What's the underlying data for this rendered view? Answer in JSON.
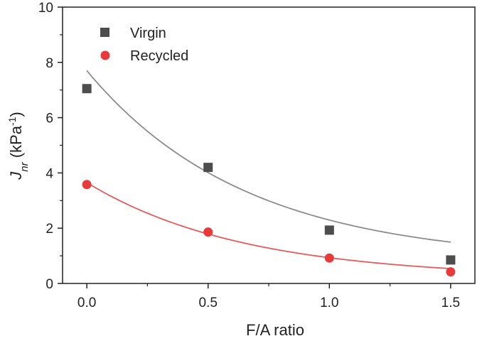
{
  "chart_data": {
    "type": "scatter",
    "title": "",
    "xlabel": "F/A ratio",
    "ylabel": {
      "main": "J",
      "subscript": "nr",
      "unit_prefix": " (kPa",
      "superscript": "-1",
      "unit_suffix": ")"
    },
    "xlim": [
      -0.1,
      1.6
    ],
    "ylim": [
      0,
      10
    ],
    "xticks": [
      0.0,
      0.5,
      1.0,
      1.5
    ],
    "xtick_labels": [
      "0.0",
      "0.5",
      "1.0",
      "1.5"
    ],
    "yticks": [
      0,
      2,
      4,
      6,
      8,
      10
    ],
    "ytick_labels": [
      "0",
      "2",
      "4",
      "6",
      "8",
      "10"
    ],
    "grid": false,
    "legend_position": "top-left",
    "series": [
      {
        "name": "Virgin",
        "marker": "square",
        "color": "#4d4d4d",
        "fit_color": "#8c8c8c",
        "x": [
          0.0,
          0.5,
          1.0,
          1.5
        ],
        "y": [
          7.05,
          4.2,
          1.93,
          0.85
        ],
        "fit": {
          "a": 6.9,
          "b": 0.8,
          "k": 1.53
        }
      },
      {
        "name": "Recycled",
        "marker": "circle",
        "color": "#e83a3a",
        "fit_color": "#e85a5a",
        "x": [
          0.0,
          0.5,
          1.0,
          1.5
        ],
        "y": [
          3.58,
          1.86,
          0.92,
          0.42
        ],
        "fit": {
          "a": 3.45,
          "b": 0.2,
          "k": 1.55
        }
      }
    ]
  }
}
